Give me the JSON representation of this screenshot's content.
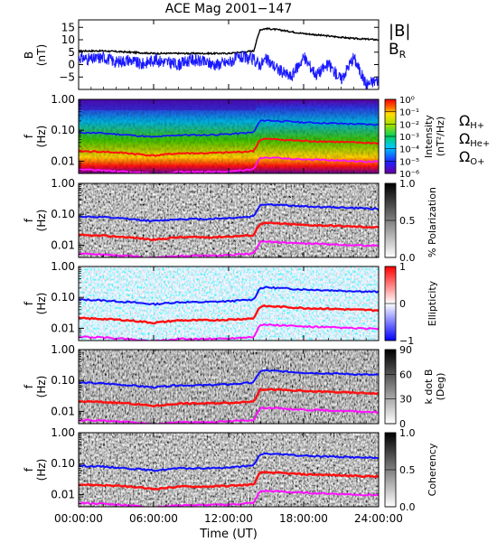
{
  "figure": {
    "title": "ACE Mag 2001−147",
    "xlabel": "Time (UT)",
    "x_ticks": [
      "00:00:00",
      "06:00:00",
      "12:00:00",
      "18:00:00",
      "24:00:00"
    ],
    "x_tick_hours": [
      0,
      6,
      12,
      18,
      24
    ],
    "xlim_hours": [
      0,
      24
    ]
  },
  "colors": {
    "B_total": "#000000",
    "B_R": "#1a1aff",
    "H_plus": "#1010ff",
    "He_plus": "#ff1010",
    "O_plus": "#ff10ff"
  },
  "chart_data": [
    {
      "type": "line",
      "ylabel_top": "B",
      "ylabel_bottom": "(nT)",
      "ylim": [
        -10,
        18
      ],
      "y_ticks": [
        -5,
        0,
        5,
        10,
        15
      ],
      "legend": [
        "|B|",
        "B_R"
      ],
      "series": [
        {
          "name": "|B|",
          "x_hours": [
            0,
            2,
            4,
            6,
            8,
            10,
            12,
            14,
            14.5,
            15,
            16,
            18,
            20,
            22,
            24
          ],
          "values": [
            5.5,
            5.5,
            5.0,
            4.5,
            4.5,
            4.5,
            4.5,
            5.5,
            14,
            14.5,
            14,
            12.5,
            11.5,
            10.5,
            10
          ]
        },
        {
          "name": "B_R",
          "x_hours": [
            0,
            1,
            2,
            3,
            4,
            5,
            6,
            7,
            8,
            9,
            10,
            11,
            12,
            13,
            14,
            14.5,
            15,
            16,
            17,
            18,
            19,
            20,
            21,
            22,
            23,
            24
          ],
          "values": [
            3,
            2,
            3,
            1,
            2,
            0,
            2,
            1,
            0,
            2,
            1,
            0,
            1,
            3,
            2,
            0,
            2,
            -2,
            -5,
            3,
            -4,
            0,
            -6,
            3,
            -8,
            -6
          ]
        }
      ]
    },
    {
      "type": "heatmap",
      "ylabel_top": "f",
      "ylabel_bottom": "(Hz)",
      "y_scale": "log",
      "ylim": [
        0.004,
        1.0
      ],
      "y_ticks": [
        "1.00",
        "0.10",
        "0.01"
      ],
      "colorbar": {
        "label_top": "Intensity",
        "label_bottom": "(nT²/Hz)",
        "ticks": [
          "10⁰",
          "10⁻¹",
          "10⁻²",
          "10⁻³",
          "10⁻⁴",
          "10⁻⁵",
          "10⁻⁶"
        ],
        "stops": [
          "#6a00a0",
          "#2020ff",
          "#00c8ff",
          "#00d060",
          "#a0e000",
          "#ffe000",
          "#ff6000",
          "#ff0000"
        ]
      },
      "cyclotron_legend": [
        {
          "label": "Ω",
          "sub": "H+",
          "color": "#1010ff"
        },
        {
          "label": "Ω",
          "sub": "He+",
          "color": "#ff1010"
        },
        {
          "label": "Ω",
          "sub": "O+",
          "color": "#ff10ff"
        }
      ]
    },
    {
      "type": "heatmap",
      "ylabel_top": "f",
      "ylabel_bottom": "(Hz)",
      "y_scale": "log",
      "colorbar": {
        "label_top": "% Polarization",
        "label_bottom": "",
        "ticks": [
          "1.0",
          "0.5",
          "0.0"
        ],
        "stops": [
          "#000000",
          "#ffffff"
        ]
      }
    },
    {
      "type": "heatmap",
      "ylabel_top": "f",
      "ylabel_bottom": "(Hz)",
      "y_scale": "log",
      "colorbar": {
        "label_top": "Ellipticity",
        "label_bottom": "",
        "ticks": [
          "1",
          "0",
          "−1"
        ],
        "stops": [
          "#ff0000",
          "#ffffff",
          "#0000ff"
        ]
      }
    },
    {
      "type": "heatmap",
      "ylabel_top": "f",
      "ylabel_bottom": "(Hz)",
      "y_scale": "log",
      "colorbar": {
        "label_top": "k dot B",
        "label_bottom": "(Deg)",
        "ticks": [
          "90",
          "60",
          "30",
          "0"
        ],
        "stops": [
          "#000000",
          "#ffffff"
        ]
      }
    },
    {
      "type": "heatmap",
      "ylabel_top": "f",
      "ylabel_bottom": "(Hz)",
      "y_scale": "log",
      "colorbar": {
        "label_top": "Coherency",
        "label_bottom": "",
        "ticks": [
          "1.0",
          "0.5",
          "0.0"
        ],
        "stops": [
          "#000000",
          "#ffffff"
        ]
      }
    }
  ],
  "cyclotron_frequencies": {
    "x_hours": [
      0,
      2,
      4,
      6,
      8,
      10,
      12,
      14,
      14.5,
      15,
      16,
      18,
      20,
      22,
      24
    ],
    "H_plus": [
      0.085,
      0.08,
      0.07,
      0.06,
      0.07,
      0.07,
      0.075,
      0.085,
      0.2,
      0.21,
      0.2,
      0.18,
      0.17,
      0.16,
      0.15
    ],
    "He_plus": [
      0.021,
      0.02,
      0.018,
      0.015,
      0.018,
      0.018,
      0.019,
      0.021,
      0.05,
      0.052,
      0.05,
      0.045,
      0.043,
      0.04,
      0.038
    ],
    "O_plus": [
      0.0053,
      0.005,
      0.0045,
      0.0038,
      0.0045,
      0.0045,
      0.0047,
      0.0053,
      0.0125,
      0.013,
      0.0125,
      0.0113,
      0.0107,
      0.01,
      0.0095
    ]
  }
}
